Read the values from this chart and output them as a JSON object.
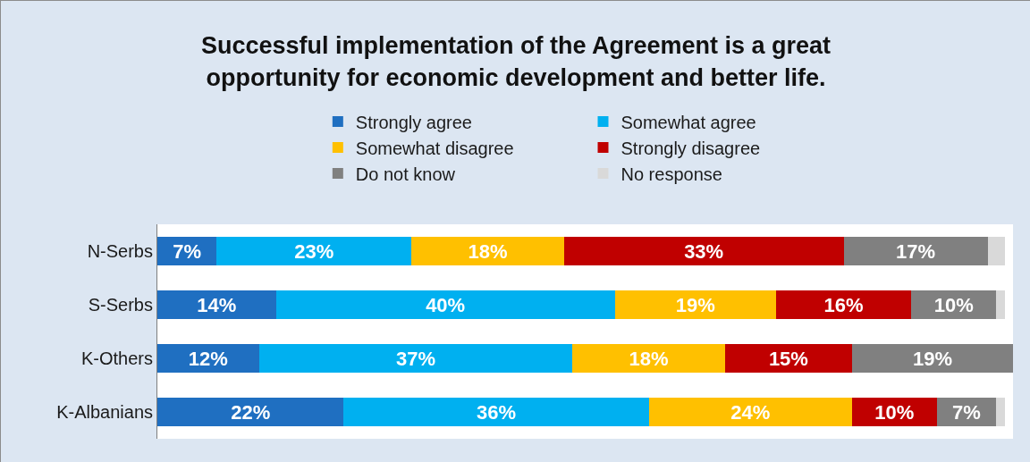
{
  "chart_data": {
    "type": "bar",
    "orientation": "horizontal",
    "stacked": true,
    "title": "Successful implementation of the Agreement is a great opportunity for economic development and better life.",
    "categories": [
      "N-Serbs",
      "S-Serbs",
      "K-Others",
      "K-Albanians"
    ],
    "legend": "top",
    "tick_labels": "y",
    "series": [
      {
        "name": "Strongly agree",
        "color": "#1f6fc1",
        "values": [
          7,
          14,
          12,
          22
        ],
        "value_labels": [
          "7%",
          "14%",
          "12%",
          "22%"
        ]
      },
      {
        "name": "Somewhat agree",
        "color": "#00b0f0",
        "values": [
          23,
          40,
          37,
          36
        ],
        "value_labels": [
          "23%",
          "40%",
          "37%",
          "36%"
        ]
      },
      {
        "name": "Somewhat disagree",
        "color": "#ffc000",
        "values": [
          18,
          19,
          18,
          24
        ],
        "value_labels": [
          "18%",
          "19%",
          "18%",
          "24%"
        ]
      },
      {
        "name": "Strongly disagree",
        "color": "#c00000",
        "values": [
          33,
          16,
          15,
          10
        ],
        "value_labels": [
          "33%",
          "16%",
          "15%",
          "10%"
        ]
      },
      {
        "name": "Do not know",
        "color": "#808080",
        "values": [
          17,
          10,
          19,
          7
        ],
        "value_labels": [
          "17%",
          "10%",
          "19%",
          "7%"
        ]
      },
      {
        "name": "No response",
        "color": "#d9d9d9",
        "values": [
          2,
          1,
          0,
          1
        ],
        "value_labels": [
          null,
          null,
          null,
          null
        ]
      }
    ]
  }
}
